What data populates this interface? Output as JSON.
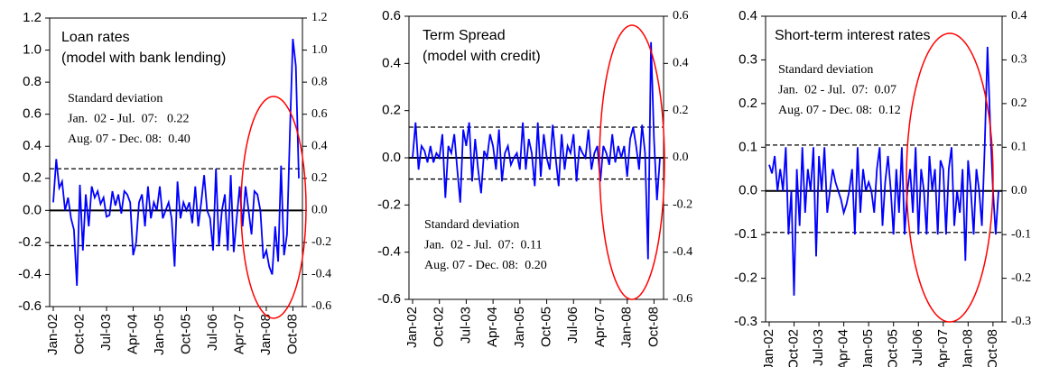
{
  "chart_data": [
    {
      "type": "line",
      "title": "Loan rates",
      "subtitle": "(model with bank lending)",
      "annotations": [
        "Standard deviation",
        "Jan.  02 - Jul.  07:   0.22",
        "Aug. 07 - Dec. 08:  0.40"
      ],
      "categories": [
        "Jan-02",
        null,
        null,
        null,
        null,
        null,
        null,
        null,
        null,
        "Oct-02",
        null,
        null,
        null,
        null,
        null,
        null,
        null,
        null,
        "Jul-03",
        null,
        null,
        null,
        null,
        null,
        null,
        null,
        null,
        "Apr-04",
        null,
        null,
        null,
        null,
        null,
        null,
        null,
        null,
        "Jan-05",
        null,
        null,
        null,
        null,
        null,
        null,
        null,
        null,
        "Oct-05",
        null,
        null,
        null,
        null,
        null,
        null,
        null,
        null,
        "Jul-06",
        null,
        null,
        null,
        null,
        null,
        null,
        null,
        null,
        "Apr-07",
        null,
        null,
        null,
        null,
        null,
        null,
        null,
        null,
        "Jan-08",
        null,
        null,
        null,
        null,
        null,
        null,
        null,
        null,
        "Oct-08",
        null,
        null
      ],
      "series": [
        {
          "color": "#0000ff",
          "values": [
            0.05,
            0.32,
            0.14,
            0.18,
            0.0,
            0.08,
            -0.05,
            -0.12,
            -0.47,
            0.16,
            -0.25,
            0.1,
            -0.1,
            0.15,
            0.08,
            0.12,
            0.04,
            0.08,
            -0.04,
            -0.03,
            0.12,
            0.03,
            0.1,
            -0.02,
            0.12,
            0.1,
            0.05,
            -0.28,
            -0.2,
            0.05,
            0.1,
            -0.1,
            0.15,
            -0.05,
            0.05,
            0.0,
            0.15,
            -0.05,
            0.0,
            0.05,
            -0.05,
            -0.35,
            0.18,
            -0.05,
            0.05,
            0.0,
            0.05,
            -0.08,
            0.15,
            -0.1,
            0.05,
            0.22,
            0.0,
            -0.05,
            -0.25,
            0.26,
            -0.22,
            0.0,
            0.1,
            -0.25,
            0.22,
            -0.26,
            -0.05,
            0.15,
            -0.1,
            0.15,
            0.0,
            -0.15,
            0.12,
            0.1,
            0.0,
            -0.3,
            -0.25,
            -0.35,
            -0.4,
            -0.1,
            -0.32,
            0.28,
            -0.28,
            -0.15,
            0.5,
            1.07,
            0.9,
            0.2
          ]
        }
      ],
      "reference_lines": [
        0.26,
        -0.22
      ],
      "ylim": [
        -0.6,
        1.2
      ],
      "yticks": [
        1.2,
        {
          "value": 1.0,
          "label": "1.0"
        },
        0.8,
        0.6,
        0.4,
        0.2,
        {
          "value": 0,
          "label": "0.0"
        },
        -0.2,
        -0.4,
        -0.6
      ],
      "y2lim": [
        -0.6,
        1.2
      ],
      "y2ticks": [
        1.2,
        {
          "value": 1.0,
          "label": "1.0"
        },
        0.8,
        0.6,
        0.4,
        0.2,
        {
          "value": 0,
          "label": "0.0"
        },
        -0.2,
        -0.4,
        -0.6
      ]
    },
    {
      "type": "line",
      "title": "Term Spread",
      "subtitle": "(model with credit)",
      "annotations": [
        "Standard deviation",
        "Jan.  02 - Jul.  07:  0.11",
        "Aug. 07 - Dec. 08:  0.20"
      ],
      "categories": [
        "Jan-02",
        null,
        null,
        null,
        null,
        null,
        null,
        null,
        null,
        "Oct-02",
        null,
        null,
        null,
        null,
        null,
        null,
        null,
        null,
        "Jul-03",
        null,
        null,
        null,
        null,
        null,
        null,
        null,
        null,
        "Apr-04",
        null,
        null,
        null,
        null,
        null,
        null,
        null,
        null,
        "Jan-05",
        null,
        null,
        null,
        null,
        null,
        null,
        null,
        null,
        "Oct-05",
        null,
        null,
        null,
        null,
        null,
        null,
        null,
        null,
        "Jul-06",
        null,
        null,
        null,
        null,
        null,
        null,
        null,
        null,
        "Apr-07",
        null,
        null,
        null,
        null,
        null,
        null,
        null,
        null,
        "Jan-08",
        null,
        null,
        null,
        null,
        null,
        null,
        null,
        null,
        "Oct-08",
        null,
        null
      ],
      "series": [
        {
          "color": "#0000ff",
          "values": [
            0.0,
            0.15,
            -0.05,
            0.05,
            0.03,
            -0.02,
            0.05,
            -0.02,
            0.02,
            0.0,
            0.1,
            -0.17,
            0.05,
            0.02,
            0.1,
            -0.05,
            -0.19,
            0.12,
            0.05,
            0.15,
            -0.1,
            0.08,
            -0.05,
            -0.15,
            0.03,
            0.0,
            0.1,
            0.05,
            -0.05,
            0.12,
            -0.1,
            0.02,
            0.05,
            -0.03,
            0.0,
            0.02,
            -0.05,
            0.15,
            -0.05,
            0.08,
            0.02,
            -0.12,
            0.15,
            -0.08,
            0.1,
            0.0,
            -0.05,
            0.14,
            0.0,
            -0.12,
            0.1,
            -0.05,
            0.05,
            0.02,
            0.1,
            -0.1,
            0.05,
            0.02,
            0.0,
            0.12,
            -0.05,
            0.02,
            0.05,
            -0.1,
            0.05,
            0.02,
            -0.03,
            0.1,
            -0.02,
            0.05,
            0.0,
            0.05,
            -0.08,
            0.08,
            0.13,
            0.05,
            -0.05,
            0.14,
            0.02,
            -0.43,
            0.49,
            0.08,
            -0.18,
            0.0
          ]
        }
      ],
      "reference_lines": [
        0.13,
        -0.09
      ],
      "ylim": [
        -0.6,
        0.6
      ],
      "yticks": [
        0.6,
        0.4,
        0.2,
        {
          "value": 0,
          "label": "0.0"
        },
        -0.2,
        -0.4,
        -0.6
      ],
      "y2lim": [
        -0.6,
        0.6
      ],
      "y2ticks": [
        0.6,
        0.4,
        0.2,
        {
          "value": 0,
          "label": "0.0"
        },
        -0.2,
        -0.4,
        -0.6
      ]
    },
    {
      "type": "line",
      "title": "Short-term interest rates",
      "annotations": [
        "Standard deviation",
        "Jan.  02 - Jul.  07:  0.07",
        "Aug. 07 - Dec. 08:  0.12"
      ],
      "categories": [
        "Jan-02",
        null,
        null,
        null,
        null,
        null,
        null,
        null,
        null,
        "Oct-02",
        null,
        null,
        null,
        null,
        null,
        null,
        null,
        null,
        "Jul-03",
        null,
        null,
        null,
        null,
        null,
        null,
        null,
        null,
        "Apr-04",
        null,
        null,
        null,
        null,
        null,
        null,
        null,
        null,
        "Jan-05",
        null,
        null,
        null,
        null,
        null,
        null,
        null,
        null,
        "Oct-05",
        null,
        null,
        null,
        null,
        null,
        null,
        null,
        null,
        "Jul-06",
        null,
        null,
        null,
        null,
        null,
        null,
        null,
        null,
        "Apr-07",
        null,
        null,
        null,
        null,
        null,
        null,
        null,
        null,
        "Jan-08",
        null,
        null,
        null,
        null,
        null,
        null,
        null,
        null,
        "Oct-08",
        null,
        null
      ],
      "series": [
        {
          "color": "#0000ff",
          "values": [
            0.06,
            0.04,
            0.08,
            0.0,
            0.05,
            0.0,
            0.1,
            -0.1,
            0.0,
            -0.24,
            0.05,
            -0.08,
            0.1,
            -0.05,
            0.05,
            0.0,
            0.1,
            -0.15,
            0.08,
            0.0,
            0.1,
            -0.05,
            0.0,
            0.05,
            0.02,
            0.0,
            -0.02,
            -0.05,
            -0.03,
            0.0,
            0.05,
            -0.1,
            0.1,
            -0.05,
            0.05,
            0.0,
            0.02,
            0.0,
            -0.05,
            0.05,
            0.1,
            -0.08,
            0.02,
            0.08,
            0.0,
            -0.1,
            0.05,
            -0.05,
            0.1,
            -0.1,
            0.0,
            0.05,
            -0.05,
            0.1,
            -0.1,
            0.05,
            0.0,
            -0.1,
            0.08,
            0.0,
            0.05,
            -0.1,
            0.07,
            0.05,
            -0.1,
            0.05,
            0.1,
            -0.08,
            0.0,
            -0.05,
            0.05,
            -0.16,
            0.07,
            0.0,
            -0.1,
            0.05,
            0.0,
            -0.08,
            0.1,
            0.33,
            0.15,
            0.0,
            -0.1,
            0.0
          ]
        }
      ],
      "reference_lines": [
        0.105,
        -0.095
      ],
      "ylim": [
        -0.3,
        0.4
      ],
      "yticks": [
        0.4,
        0.3,
        0.2,
        0.1,
        {
          "value": 0,
          "label": "0.0"
        },
        -0.1,
        -0.2,
        -0.3
      ],
      "y2lim": [
        -0.3,
        0.4
      ],
      "y2ticks": [
        0.4,
        0.3,
        0.2,
        0.1,
        {
          "value": 0,
          "label": "0.0"
        },
        -0.1,
        -0.2,
        -0.3
      ]
    }
  ]
}
